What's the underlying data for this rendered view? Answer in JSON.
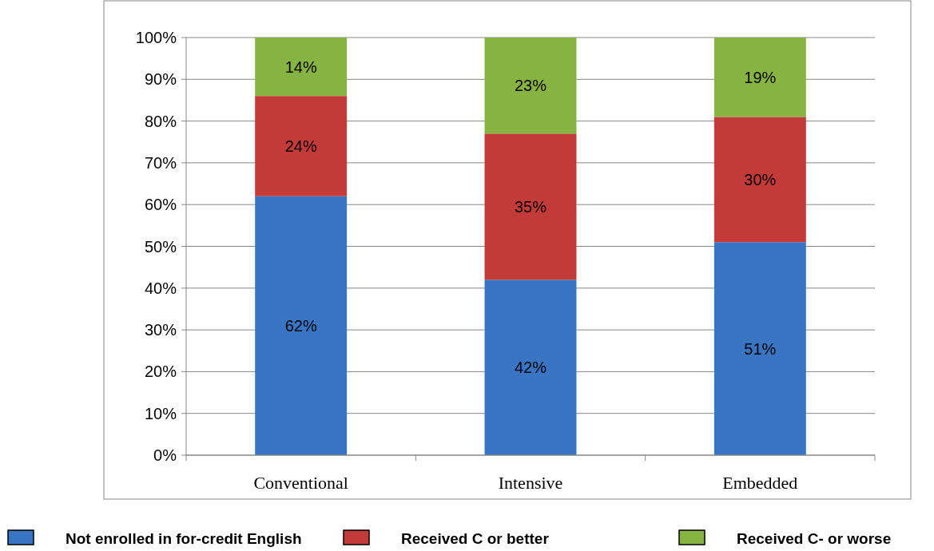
{
  "chart_data": {
    "type": "bar",
    "stacked": true,
    "categories": [
      "Conventional",
      "Intensive",
      "Embedded"
    ],
    "series": [
      {
        "name": "Not enrolled in for-credit English",
        "color": "#3a75c4",
        "values": [
          62,
          42,
          51
        ],
        "value_labels": [
          "62%",
          "42%",
          "51%"
        ]
      },
      {
        "name": "Received C or better",
        "color": "#c23b38",
        "values": [
          24,
          35,
          30
        ],
        "value_labels": [
          "24%",
          "35%",
          "30%"
        ]
      },
      {
        "name": "Received C- or worse",
        "color": "#86b342",
        "values": [
          14,
          23,
          19
        ],
        "value_labels": [
          "14%",
          "23%",
          "19%"
        ]
      }
    ],
    "ylim": [
      0,
      100
    ],
    "yticks": [
      {
        "value": 0,
        "label": "0%"
      },
      {
        "value": 10,
        "label": "10%"
      },
      {
        "value": 20,
        "label": "20%"
      },
      {
        "value": 30,
        "label": "30%"
      },
      {
        "value": 40,
        "label": "40%"
      },
      {
        "value": 50,
        "label": "50%"
      },
      {
        "value": 60,
        "label": "60%"
      },
      {
        "value": 70,
        "label": "70%"
      },
      {
        "value": 80,
        "label": "80%"
      },
      {
        "value": 90,
        "label": "90%"
      },
      {
        "value": 100,
        "label": "100%"
      }
    ],
    "grid": "y",
    "legend": "bottom"
  }
}
